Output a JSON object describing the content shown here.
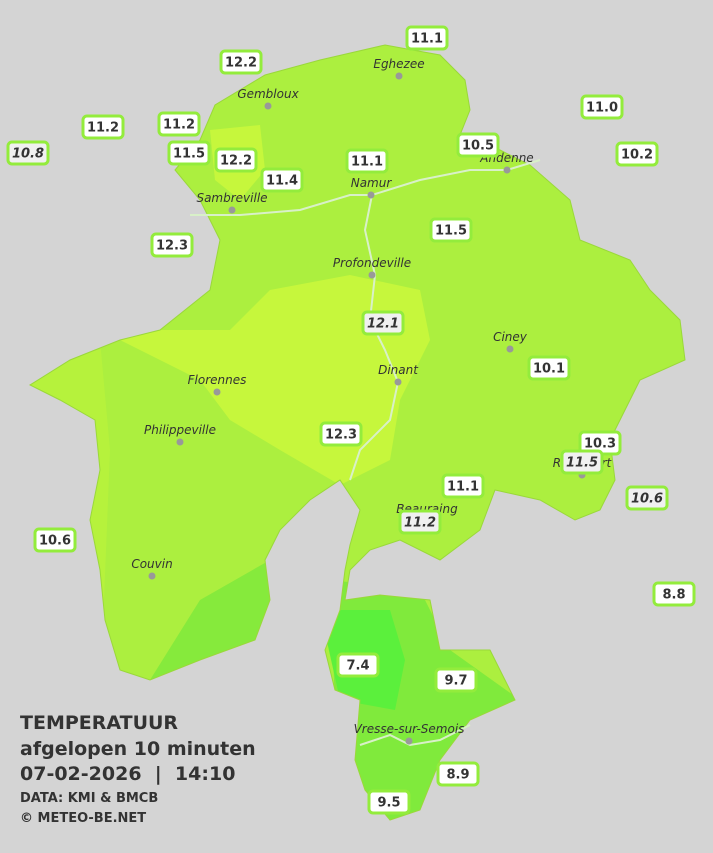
{
  "title": "TEMPERATUUR",
  "subtitle": "afgelopen 10 minuten",
  "timestamp": "07-02-2026  |  14:10",
  "source": "DATA: KMI & BMCB",
  "copyright": "© METEO-BE.NET",
  "cities": [
    "Eghezee",
    "Gembloux",
    "Andenne",
    "Namur",
    "Sambreville",
    "Profondeville",
    "Ciney",
    "Dinant",
    "Florennes",
    "Philippeville",
    "Rochefort",
    "Beauraing",
    "Couvin",
    "Vresse-sur-Semois"
  ],
  "stations": [
    "11.1",
    "12.2",
    "11.0",
    "11.2",
    "11.2",
    "10.8",
    "11.5",
    "12.2",
    "10.5",
    "10.2",
    "11.1",
    "11.4",
    "12.3",
    "11.5",
    "12.1",
    "10.1",
    "12.3",
    "10.3",
    "11.5",
    "10.6",
    "11.1",
    "11.2",
    "10.6",
    "8.8",
    "7.4",
    "9.7",
    "8.9",
    "9.5"
  ]
}
